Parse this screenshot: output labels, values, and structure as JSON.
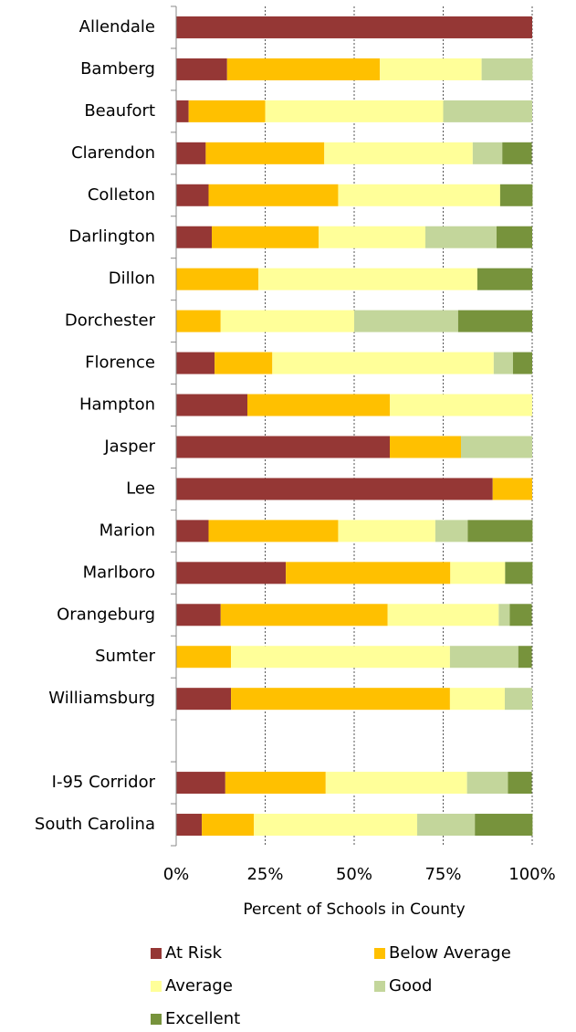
{
  "chart_data": {
    "type": "stacked_barh",
    "x_label": "Percent of Schools in County",
    "categories": [
      "Allendale",
      "Bamberg",
      "Beaufort",
      "Clarendon",
      "Colleton",
      "Darlington",
      "Dillon",
      "Dorchester",
      "Florence",
      "Hampton",
      "Jasper",
      "Lee",
      "Marion",
      "Marlboro",
      "Orangeburg",
      "Sumter",
      "Williamsburg",
      null,
      "I-95 Corridor",
      "South Carolina"
    ],
    "series": [
      {
        "name": "At Risk",
        "color": "#953735",
        "values": [
          100,
          14.3,
          3.5,
          8.3,
          9.1,
          10,
          0,
          0,
          10.8,
          20,
          60,
          88.9,
          9.1,
          30.8,
          12.5,
          0,
          15.4,
          null,
          13.8,
          7.2
        ]
      },
      {
        "name": "Below Average",
        "color": "#ffc000",
        "values": [
          0,
          42.9,
          21.5,
          33.3,
          36.4,
          30,
          23.1,
          12.5,
          16.2,
          40,
          20,
          11.1,
          36.4,
          46.2,
          46.9,
          15.4,
          61.5,
          null,
          28.2,
          14.6
        ]
      },
      {
        "name": "Average",
        "color": "#ffff99",
        "values": [
          0,
          28.6,
          50,
          41.7,
          45.5,
          30,
          61.5,
          37.5,
          62.2,
          40,
          0,
          0,
          27.3,
          15.4,
          31.2,
          61.5,
          15.4,
          null,
          39.7,
          45.9
        ]
      },
      {
        "name": "Good",
        "color": "#c3d69b",
        "values": [
          0,
          14.3,
          25,
          8.3,
          0,
          20,
          0,
          29.2,
          5.4,
          0,
          20,
          0,
          9.1,
          0,
          3.1,
          19.2,
          7.7,
          null,
          11.5,
          16.2
        ]
      },
      {
        "name": "Excellent",
        "color": "#77933c",
        "values": [
          0,
          0,
          0,
          8.3,
          9.1,
          10,
          15.4,
          20.8,
          5.4,
          0,
          0,
          0,
          18.2,
          7.7,
          6.2,
          3.8,
          0,
          null,
          6.7,
          16.2
        ]
      }
    ],
    "xlim": [
      0,
      100
    ],
    "xticks": [
      {
        "value": 0,
        "label": "0%"
      },
      {
        "value": 25,
        "label": "25%"
      },
      {
        "value": 50,
        "label": "50%"
      },
      {
        "value": 75,
        "label": "75%"
      },
      {
        "value": 100,
        "label": "100%"
      }
    ],
    "grid": true
  }
}
